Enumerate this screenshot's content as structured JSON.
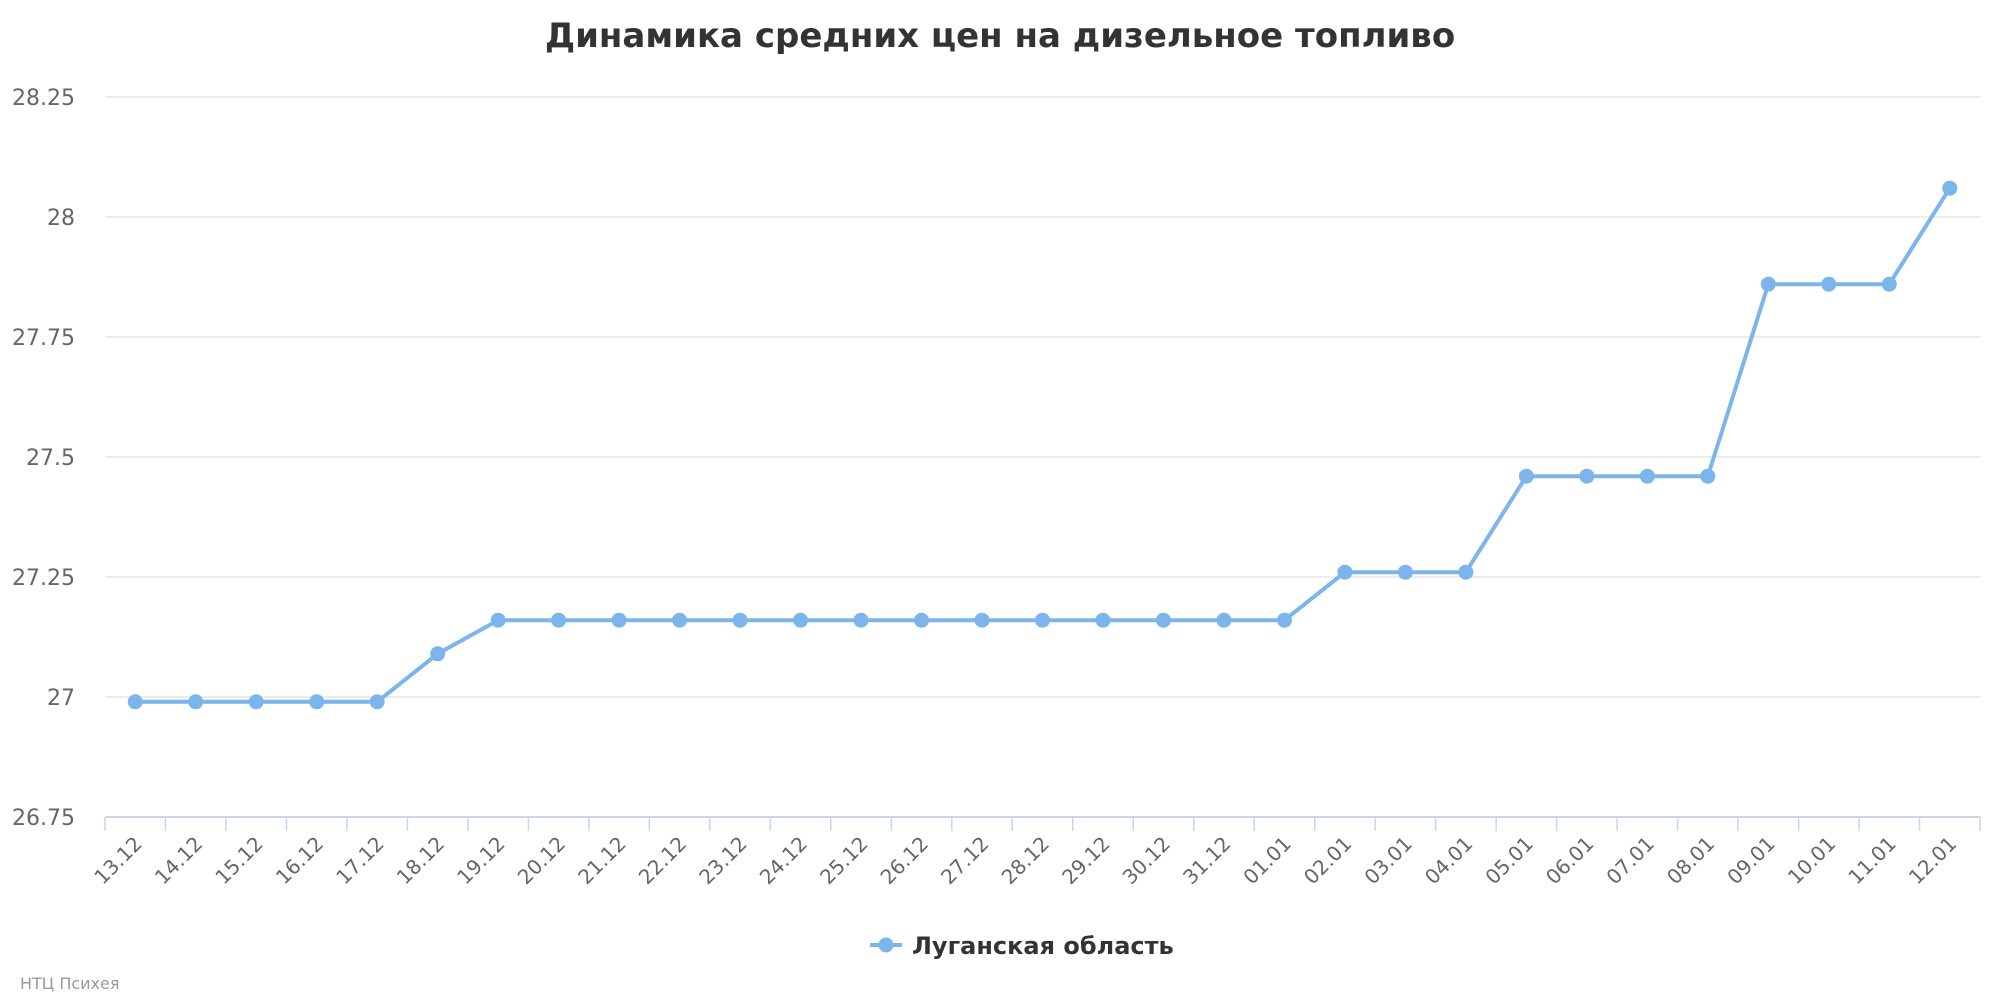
{
  "chart_data": {
    "type": "line",
    "title": "Динамика средних цен на дизельное топливо",
    "xlabel": "",
    "ylabel": "",
    "categories": [
      "13.12",
      "14.12",
      "15.12",
      "16.12",
      "17.12",
      "18.12",
      "19.12",
      "20.12",
      "21.12",
      "22.12",
      "23.12",
      "24.12",
      "25.12",
      "26.12",
      "27.12",
      "28.12",
      "29.12",
      "30.12",
      "31.12",
      "01.01",
      "02.01",
      "03.01",
      "04.01",
      "05.01",
      "06.01",
      "07.01",
      "08.01",
      "09.01",
      "10.01",
      "11.01",
      "12.01"
    ],
    "series": [
      {
        "name": "Луганская область",
        "color": "#7cb5ec",
        "values": [
          26.99,
          26.99,
          26.99,
          26.99,
          26.99,
          27.09,
          27.16,
          27.16,
          27.16,
          27.16,
          27.16,
          27.16,
          27.16,
          27.16,
          27.16,
          27.16,
          27.16,
          27.16,
          27.16,
          27.16,
          27.26,
          27.26,
          27.26,
          27.46,
          27.46,
          27.46,
          27.46,
          27.86,
          27.86,
          27.86,
          28.06
        ]
      }
    ],
    "ylim": [
      26.75,
      28.25
    ],
    "yticks": [
      26.75,
      27,
      27.25,
      27.5,
      27.75,
      28,
      28.25
    ],
    "ytick_labels": [
      "26.75",
      "27",
      "27.25",
      "27.5",
      "27.75",
      "28",
      "28.25"
    ],
    "grid": true,
    "legend_position": "bottom-center"
  },
  "credit": "НТЦ Психея"
}
